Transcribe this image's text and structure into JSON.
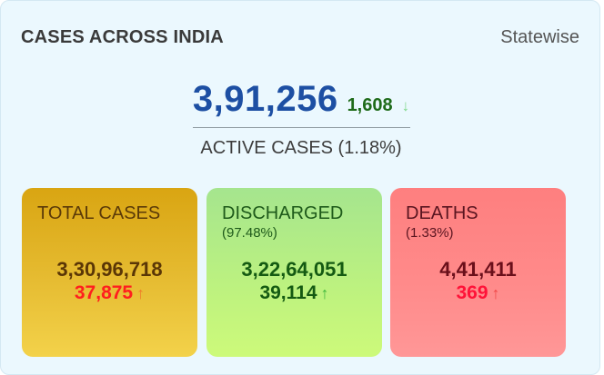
{
  "header": {
    "title": "CASES ACROSS INDIA",
    "statewise_label": "Statewise"
  },
  "active": {
    "value": "3,91,256",
    "delta": "1,608",
    "delta_arrow": "↓",
    "label": "ACTIVE CASES (1.18%)"
  },
  "stats": {
    "total": {
      "title": "TOTAL CASES",
      "value": "3,30,96,718",
      "delta": "37,875",
      "delta_arrow": "↑"
    },
    "discharged": {
      "title": "DISCHARGED",
      "subtitle": "(97.48%)",
      "value": "3,22,64,051",
      "delta": "39,114",
      "delta_arrow": "↑"
    },
    "deaths": {
      "title": "DEATHS",
      "subtitle": "(1.33%)",
      "value": "4,41,411",
      "delta": "369",
      "delta_arrow": "↑"
    }
  },
  "colors": {
    "background": "#ebf8fe",
    "active_value": "#1d4fa3",
    "total_card": "#e6bc32",
    "discharged_card": "#bdf27f",
    "deaths_card": "#ff8b8b"
  }
}
